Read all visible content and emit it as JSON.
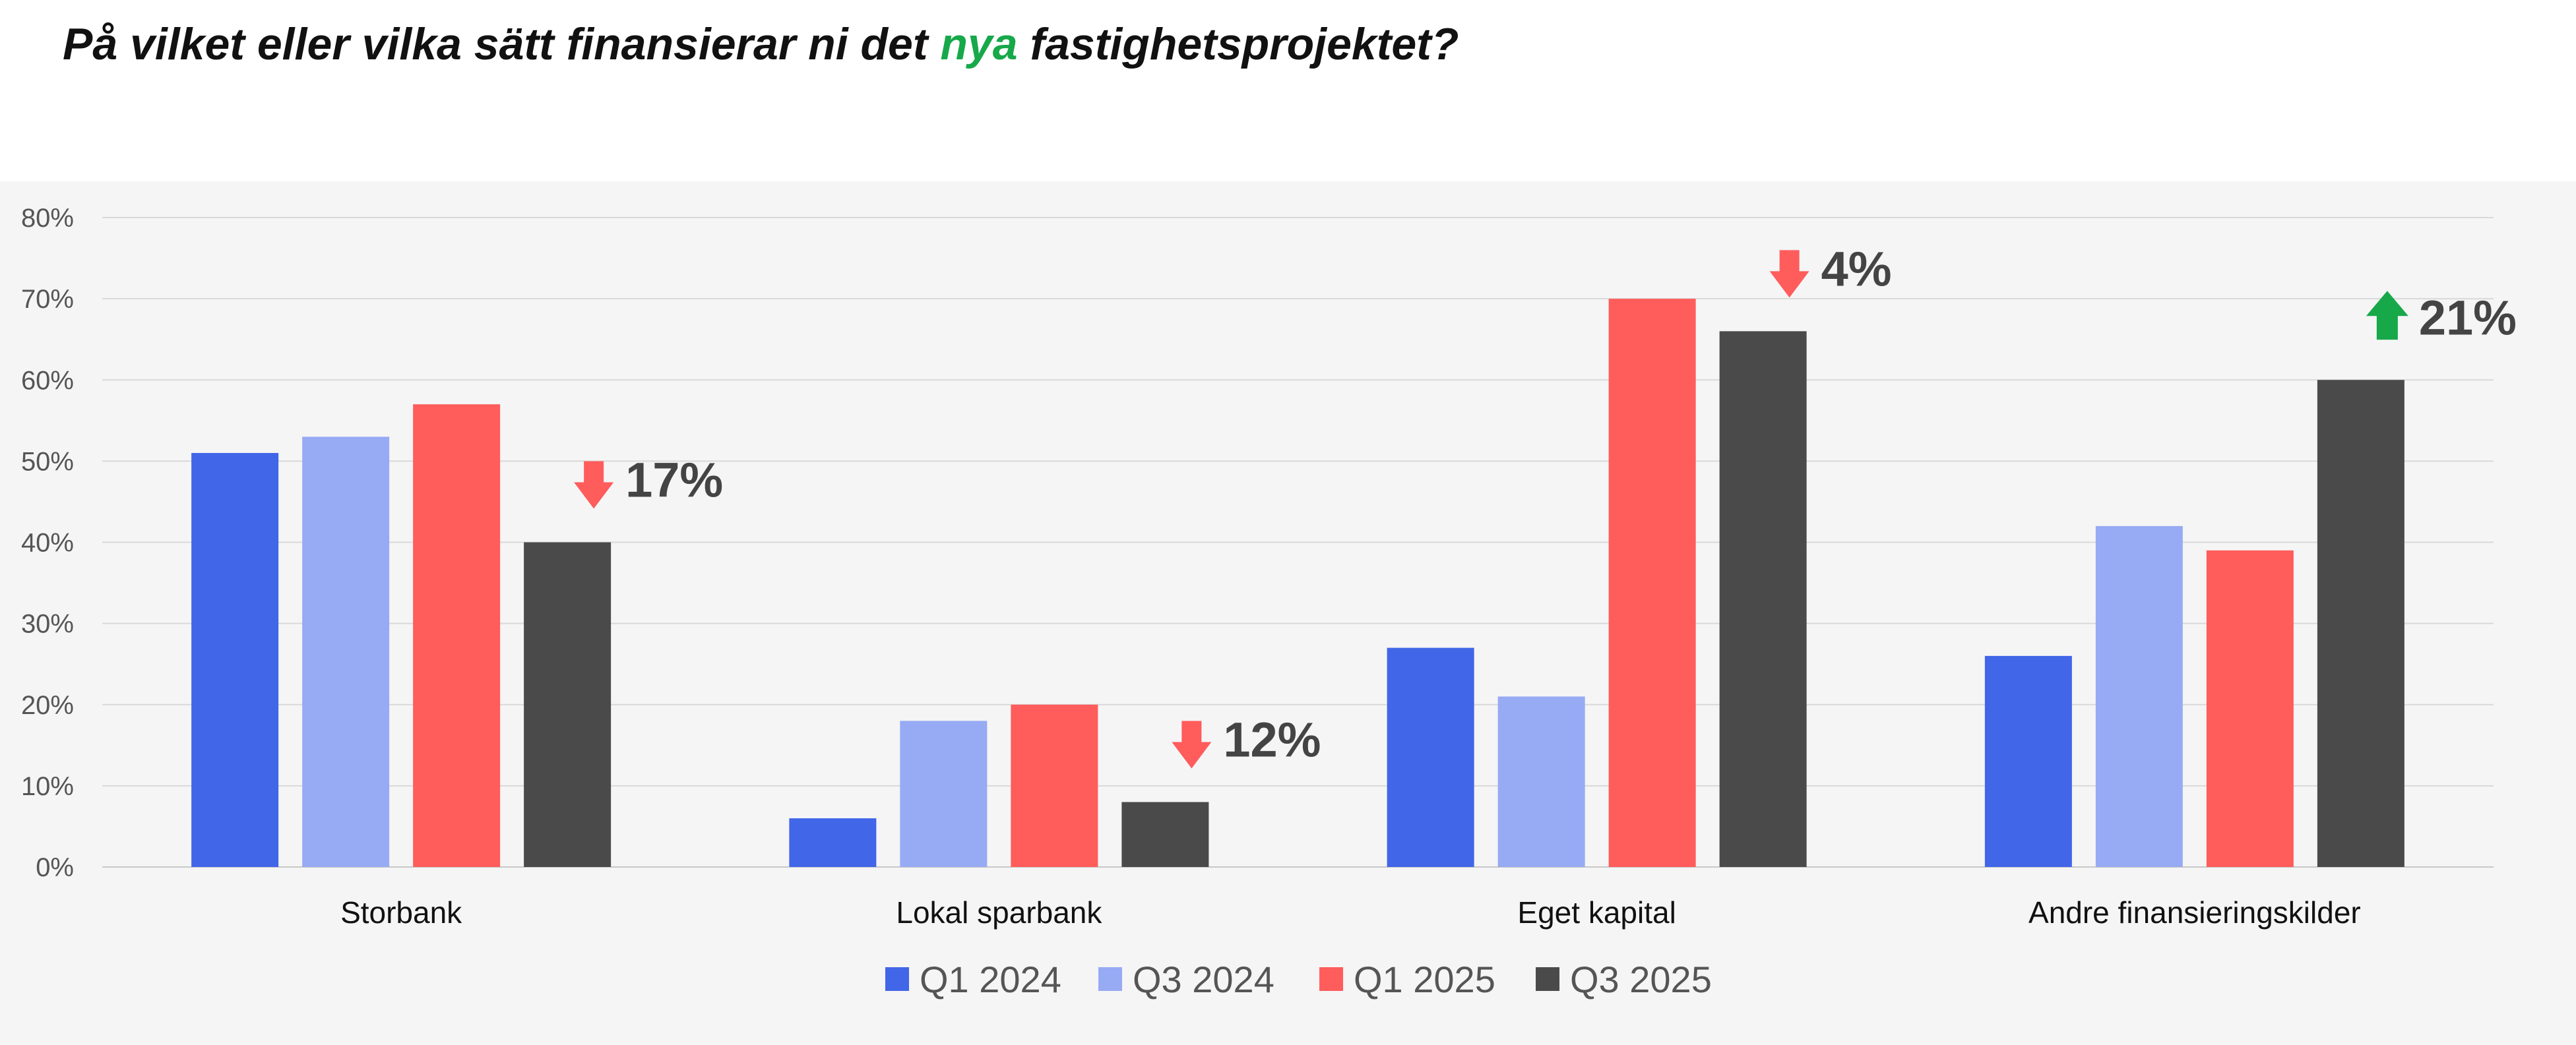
{
  "title": {
    "before": "På vilket eller vilka sätt finansierar ni det ",
    "highlight": "nya",
    "after": " fastighetsprojektet?",
    "highlight_color": "#17a84a"
  },
  "chart_data": {
    "type": "bar",
    "categories": [
      "Storbank",
      "Lokal sparbank",
      "Eget kapital",
      "Andre finansieringskilder"
    ],
    "series": [
      {
        "name": "Q1 2024",
        "color": "#4166e8",
        "values": [
          51,
          6,
          27,
          26
        ]
      },
      {
        "name": "Q3 2024",
        "color": "#97aaf4",
        "values": [
          53,
          18,
          21,
          42
        ]
      },
      {
        "name": "Q1 2025",
        "color": "#ff5c5c",
        "values": [
          57,
          20,
          70,
          39
        ]
      },
      {
        "name": "Q3 2025",
        "color": "#4a4a4a",
        "values": [
          40,
          8,
          66,
          60
        ]
      }
    ],
    "ylim": [
      0,
      80
    ],
    "yticks": [
      "0%",
      "10%",
      "20%",
      "30%",
      "40%",
      "50%",
      "60%",
      "70%",
      "80%"
    ],
    "grid": true,
    "legend_position": "bottom",
    "annotations": [
      {
        "category": "Storbank",
        "direction": "down",
        "text": "17%",
        "color": "#ff5c5c"
      },
      {
        "category": "Lokal sparbank",
        "direction": "down",
        "text": "12%",
        "color": "#ff5c5c"
      },
      {
        "category": "Eget kapital",
        "direction": "down",
        "text": "4%",
        "color": "#ff5c5c"
      },
      {
        "category": "Andre finansieringskilder",
        "direction": "up",
        "text": "21%",
        "color": "#17a84a"
      }
    ]
  }
}
